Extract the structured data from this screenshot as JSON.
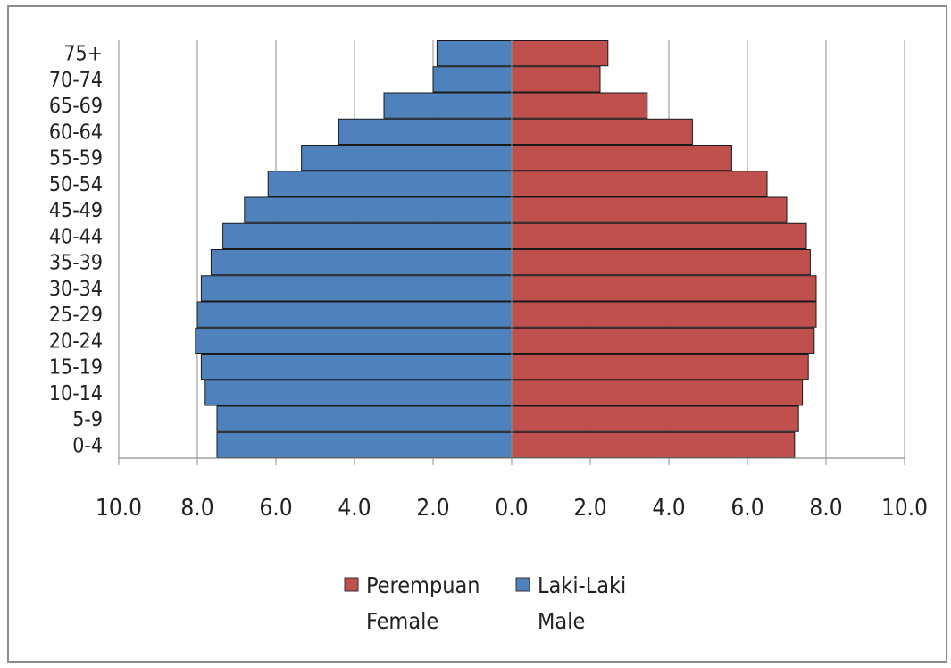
{
  "chart_data": {
    "type": "bar",
    "orientation": "horizontal",
    "layout": "population-pyramid",
    "categories": [
      "0-4",
      "5-9",
      "10-14",
      "15-19",
      "20-24",
      "25-29",
      "30-34",
      "35-39",
      "40-44",
      "45-49",
      "50-54",
      "55-59",
      "60-64",
      "65-69",
      "70-74",
      "75+"
    ],
    "series": [
      {
        "name": "Perempuan",
        "name_en": "Female",
        "color": "#c0504d",
        "side": "right",
        "values": [
          7.2,
          7.3,
          7.4,
          7.55,
          7.7,
          7.75,
          7.75,
          7.6,
          7.5,
          7.0,
          6.5,
          5.6,
          4.6,
          3.45,
          2.25,
          2.45
        ]
      },
      {
        "name": "Laki-Laki",
        "name_en": "Male",
        "color": "#4f81bd",
        "side": "left",
        "values": [
          7.5,
          7.5,
          7.8,
          7.9,
          8.05,
          8.0,
          7.9,
          7.65,
          7.35,
          6.8,
          6.2,
          5.35,
          4.4,
          3.25,
          2.0,
          1.9
        ]
      }
    ],
    "xlim": [
      -10,
      10
    ],
    "x_ticks": [
      "10.0",
      "8.0",
      "6.0",
      "4.0",
      "2.0",
      "0.0",
      "2.0",
      "4.0",
      "6.0",
      "8.0",
      "10.0"
    ],
    "grid": true,
    "legend_position": "bottom",
    "title": "",
    "xlabel": "",
    "ylabel": ""
  }
}
